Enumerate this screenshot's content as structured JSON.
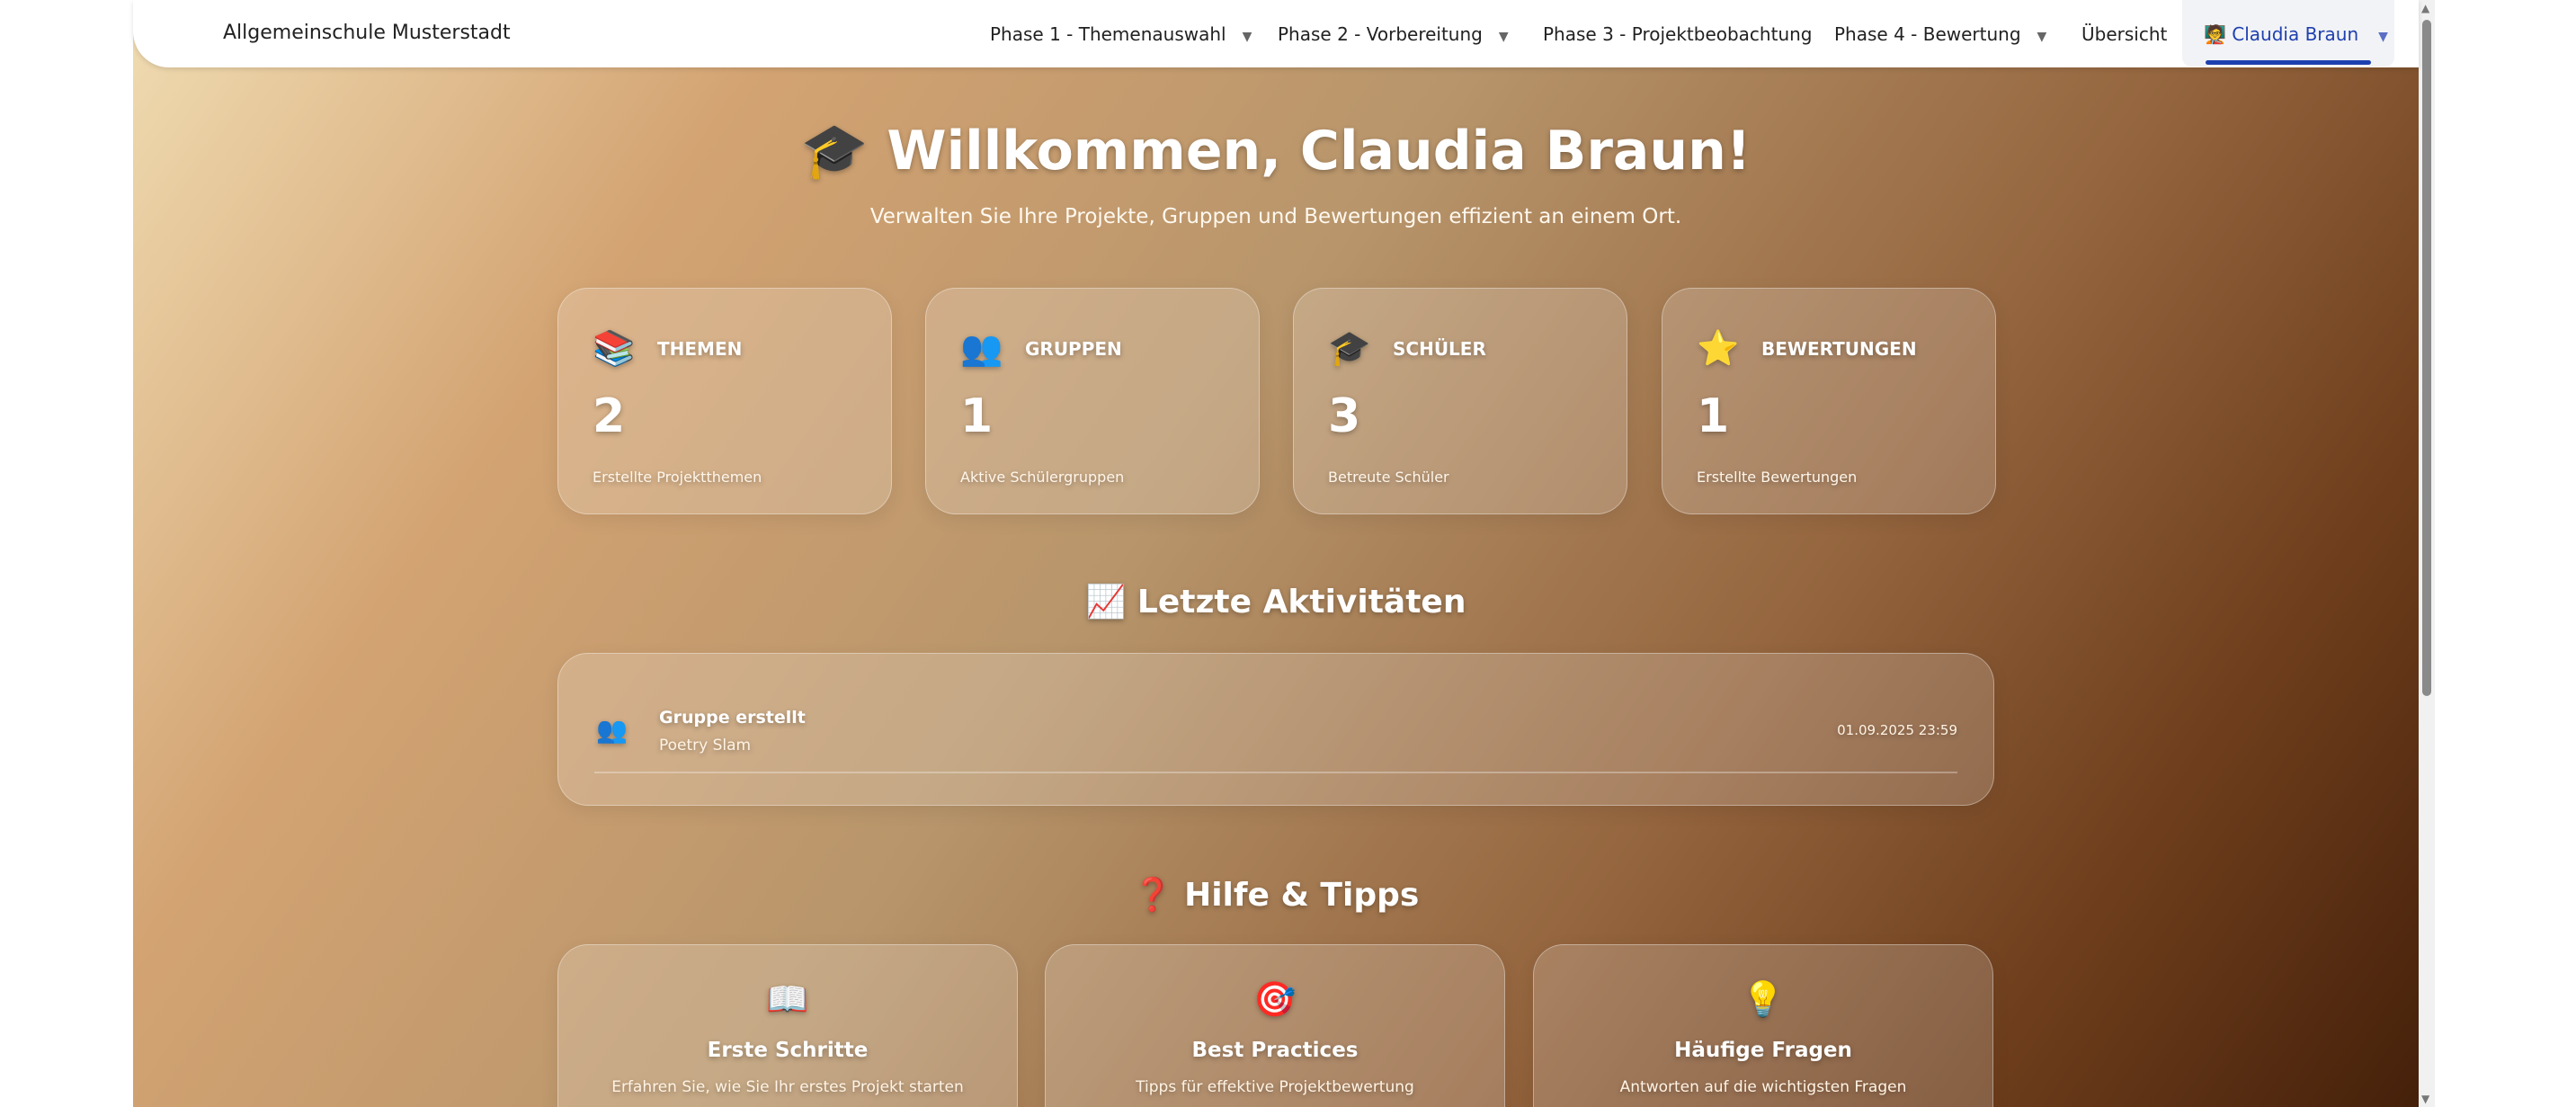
{
  "nav": {
    "brand": "Allgemeinschule Musterstadt",
    "items": [
      {
        "label": "Phase 1 - Themenauswahl",
        "dropdown": true
      },
      {
        "label": "Phase 2 - Vorbereitung",
        "dropdown": true
      },
      {
        "label": "Phase 3 - Projektbeobachtung",
        "dropdown": false
      },
      {
        "label": "Phase 4 - Bewertung",
        "dropdown": true
      },
      {
        "label": "Übersicht",
        "dropdown": false
      }
    ],
    "user": {
      "icon": "teacher-icon",
      "glyph": "🧑‍🏫",
      "name": "Claudia Braun",
      "caret": "▼"
    },
    "caret": "▼",
    "accent": "#1e40af"
  },
  "hero": {
    "icon": "🎓",
    "title": "Willkommen, Claudia Braun!",
    "subtitle": "Verwalten Sie Ihre Projekte, Gruppen und Bewertungen effizient an einem Ort."
  },
  "stats": [
    {
      "icon": "📚",
      "label": "THEMEN",
      "value": "2",
      "desc": "Erstellte Projektthemen"
    },
    {
      "icon": "👥",
      "label": "GRUPPEN",
      "value": "1",
      "desc": "Aktive Schülergruppen"
    },
    {
      "icon": "🎓",
      "label": "SCHÜLER",
      "value": "3",
      "desc": "Betreute Schüler"
    },
    {
      "icon": "⭐",
      "label": "BEWERTUNGEN",
      "value": "1",
      "desc": "Erstellte Bewertungen"
    }
  ],
  "activities": {
    "icon": "📈",
    "heading": "Letzte Aktivitäten",
    "items": [
      {
        "icon": "👥",
        "title": "Gruppe erstellt",
        "subtitle": "Poetry Slam",
        "date": "01.09.2025 23:59"
      }
    ]
  },
  "help": {
    "icon": "❓",
    "heading": "Hilfe & Tipps",
    "cards": [
      {
        "icon": "📖",
        "title": "Erste Schritte",
        "desc": "Erfahren Sie, wie Sie Ihr erstes Projekt starten"
      },
      {
        "icon": "🎯",
        "title": "Best Practices",
        "desc": "Tipps für effektive Projektbewertung"
      },
      {
        "icon": "💡",
        "title": "Häufige Fragen",
        "desc": "Antworten auf die wichtigsten Fragen"
      }
    ]
  }
}
